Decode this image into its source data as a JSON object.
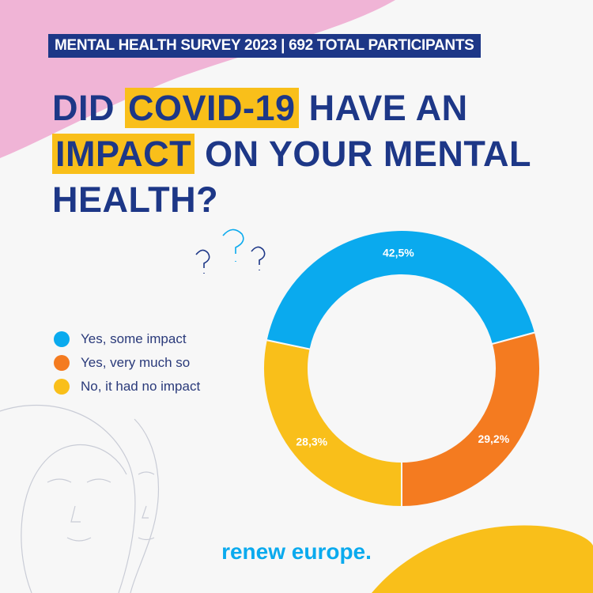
{
  "banner": "MENTAL HEALTH SURVEY 2023 | 692 TOTAL PARTICIPANTS",
  "title": {
    "part1": "DID ",
    "highlight1": "COVID-19",
    "part2": " HAVE AN ",
    "highlight2": "IMPACT",
    "part3": " ON YOUR MENTAL HEALTH?"
  },
  "brand": "renew europe.",
  "colors": {
    "navy": "#1d3787",
    "pink": "#f0b4d6",
    "blue": "#0aaaee",
    "orange": "#f47b20",
    "yellow": "#f9bf1a"
  },
  "chart_data": {
    "type": "pie",
    "donut": true,
    "categories": [
      "Yes, some impact",
      "Yes, very much so",
      "No, it had no impact"
    ],
    "values": [
      42.5,
      29.2,
      28.3
    ],
    "labels": [
      "42,5%",
      "29,2%",
      "28,3%"
    ],
    "colors": [
      "#0aaaee",
      "#f47b20",
      "#f9bf1a"
    ],
    "legend": "left"
  }
}
